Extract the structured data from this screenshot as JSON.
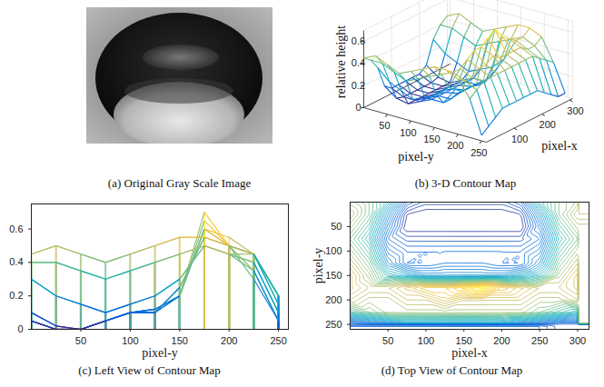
{
  "chart_data": [
    {
      "type": "image",
      "caption": "(a) Original Gray Scale Image"
    },
    {
      "type": "surface3d",
      "caption": "(b) 3-D Contour Map",
      "xlabel": "pixel-x",
      "ylabel": "pixel-y",
      "zlabel": "relative height",
      "xlim": [
        0,
        310
      ],
      "xticks": [
        100,
        200,
        300
      ],
      "ylim": [
        0,
        260
      ],
      "yticks": [
        50,
        100,
        150,
        200,
        250
      ],
      "zlim": [
        0,
        0.7
      ],
      "zticks": [
        0,
        0.2,
        0.4,
        0.6
      ],
      "color": "parula"
    },
    {
      "type": "line",
      "caption": "(c) Left View of Contour Map",
      "xlabel": "pixel-y",
      "xlim": [
        0,
        260
      ],
      "xticks": [
        50,
        100,
        150,
        200,
        250
      ],
      "ylim": [
        0,
        0.75
      ],
      "yticks": [
        0,
        0.2,
        0.4,
        0.6
      ],
      "color": "parula"
    },
    {
      "type": "contour",
      "caption": "(d) Top View of Contour Map",
      "xlabel": "pixel-x",
      "ylabel": "pixel-y",
      "xlim": [
        0,
        315
      ],
      "xticks": [
        50,
        100,
        150,
        200,
        250,
        300
      ],
      "ylim": [
        0,
        260
      ],
      "yticks": [
        50,
        100,
        150,
        200,
        250
      ],
      "color": "parula"
    }
  ],
  "surface": {
    "x": [
      0,
      25,
      50,
      75,
      100,
      125,
      150,
      175,
      200,
      225,
      250,
      275,
      300
    ],
    "y": [
      0,
      25,
      50,
      75,
      100,
      125,
      150,
      175,
      200,
      225,
      250
    ],
    "z": [
      [
        0.45,
        0.4,
        0.3,
        0.1,
        0.05,
        0.05,
        0.05,
        0.05,
        0.05,
        0.1,
        0.3,
        0.4,
        0.45
      ],
      [
        0.5,
        0.4,
        0.2,
        0.02,
        0,
        0,
        0,
        0,
        0,
        0.02,
        0.2,
        0.4,
        0.5
      ],
      [
        0.45,
        0.35,
        0.15,
        0,
        0,
        0,
        0,
        0,
        0,
        0,
        0.15,
        0.35,
        0.45
      ],
      [
        0.4,
        0.3,
        0.1,
        0.05,
        0.05,
        0.05,
        0.05,
        0.05,
        0.05,
        0.05,
        0.1,
        0.3,
        0.4
      ],
      [
        0.45,
        0.35,
        0.15,
        0.1,
        0.1,
        0.1,
        0.1,
        0.1,
        0.1,
        0.1,
        0.15,
        0.35,
        0.45
      ],
      [
        0.5,
        0.4,
        0.2,
        0.1,
        0.1,
        0.12,
        0.12,
        0.12,
        0.1,
        0.1,
        0.2,
        0.4,
        0.5
      ],
      [
        0.55,
        0.45,
        0.3,
        0.25,
        0.2,
        0.2,
        0.2,
        0.2,
        0.2,
        0.25,
        0.3,
        0.45,
        0.55
      ],
      [
        0.55,
        0.5,
        0.5,
        0.55,
        0.6,
        0.6,
        0.65,
        0.7,
        0.6,
        0.55,
        0.5,
        0.5,
        0.55
      ],
      [
        0.5,
        0.45,
        0.45,
        0.5,
        0.5,
        0.55,
        0.5,
        0.5,
        0.5,
        0.5,
        0.45,
        0.45,
        0.5
      ],
      [
        0.35,
        0.4,
        0.45,
        0.45,
        0.45,
        0.45,
        0.45,
        0.45,
        0.45,
        0.45,
        0.4,
        0.35,
        0.3
      ],
      [
        0.05,
        0.1,
        0.15,
        0.2,
        0.2,
        0.2,
        0.2,
        0.2,
        0.2,
        0.15,
        0.1,
        0.05,
        0.05
      ]
    ]
  }
}
